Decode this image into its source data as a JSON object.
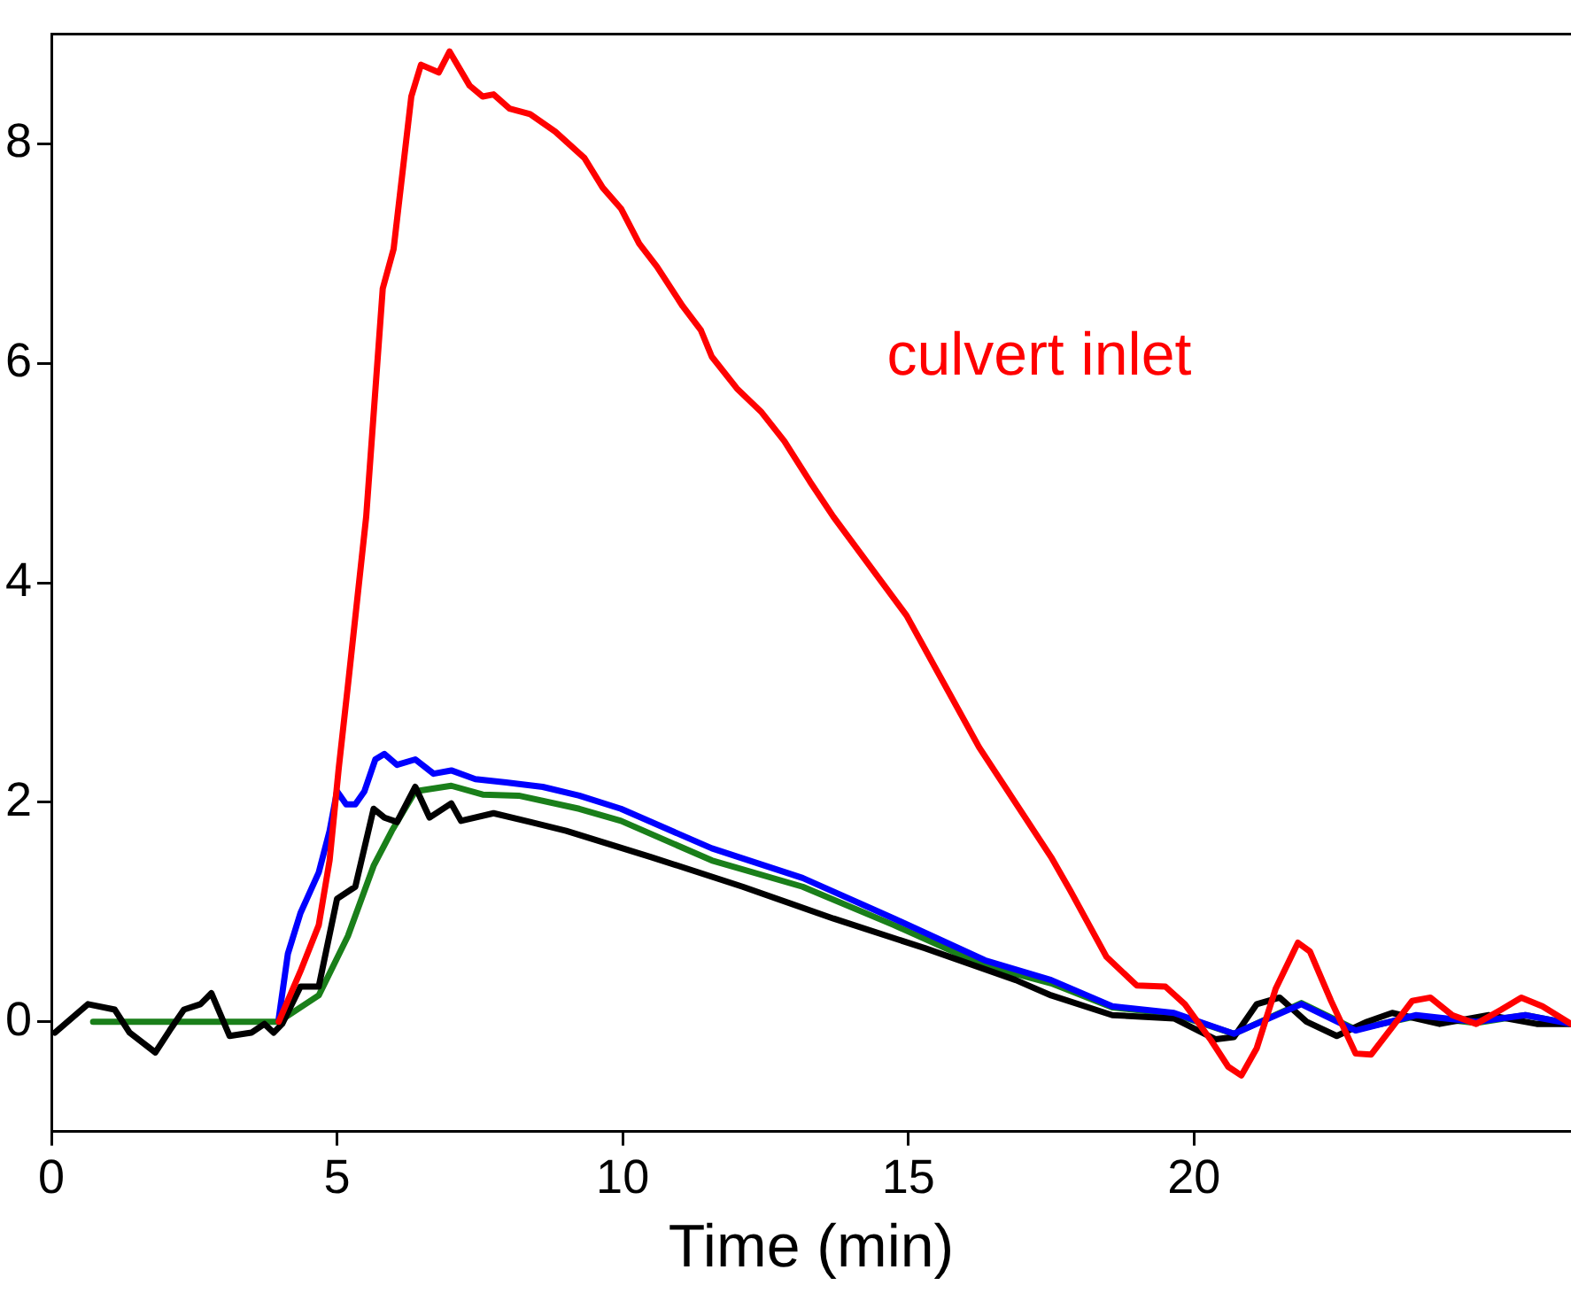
{
  "chart_data": {
    "type": "line",
    "xlabel": "Time (min)",
    "xlim": [
      0,
      26.6
    ],
    "xticks": [
      0,
      5,
      10,
      15,
      20
    ],
    "ylim": [
      -1,
      9
    ],
    "yticks": [
      0,
      2,
      4,
      6,
      8
    ],
    "grid": false,
    "legend": false,
    "marker": "none",
    "line_style": "solid",
    "series": [
      {
        "name": "culvert inlet",
        "color": "#ff0000",
        "x": [
          3.98,
          4.36,
          4.68,
          4.87,
          5.03,
          5.19,
          5.51,
          5.8,
          5.99,
          6.3,
          6.47,
          6.78,
          6.97,
          7.32,
          7.55,
          7.74,
          8.02,
          8.38,
          8.82,
          9.33,
          9.65,
          9.97,
          10.29,
          10.6,
          11.05,
          11.37,
          11.56,
          12.0,
          12.42,
          12.83,
          13.28,
          13.69,
          14.97,
          16.24,
          17.5,
          17.83,
          18.47,
          19.0,
          19.5,
          19.84,
          20.3,
          20.6,
          20.83,
          21.1,
          21.43,
          21.82,
          22.03,
          22.4,
          22.83,
          23.1,
          23.47,
          23.82,
          24.14,
          24.52,
          24.94,
          25.38,
          25.73,
          26.1,
          26.6
        ],
        "values": [
          0,
          0.46,
          0.88,
          1.47,
          2.31,
          3.06,
          4.6,
          6.68,
          7.04,
          8.43,
          8.72,
          8.65,
          8.84,
          8.53,
          8.43,
          8.45,
          8.32,
          8.27,
          8.11,
          7.87,
          7.6,
          7.41,
          7.09,
          6.88,
          6.52,
          6.3,
          6.06,
          5.77,
          5.56,
          5.29,
          4.92,
          4.6,
          3.7,
          2.5,
          1.5,
          1.2,
          0.59,
          0.33,
          0.32,
          0.16,
          -0.17,
          -0.41,
          -0.49,
          -0.24,
          0.3,
          0.72,
          0.64,
          0.19,
          -0.29,
          -0.3,
          -0.05,
          0.19,
          0.22,
          0.06,
          -0.02,
          0.11,
          0.22,
          0.14,
          -0.02
        ]
      },
      {
        "color": "#0000ff",
        "x": [
          3.98,
          4.14,
          4.36,
          4.68,
          4.87,
          5.0,
          5.16,
          5.32,
          5.48,
          5.67,
          5.83,
          6.05,
          6.37,
          6.69,
          7.0,
          7.42,
          7.96,
          8.6,
          9.24,
          9.97,
          11.56,
          13.15,
          14.75,
          16.34,
          17.5,
          18.57,
          19.65,
          20.7,
          21.88,
          22.83,
          23.89,
          24.94,
          25.8,
          26.6
        ],
        "values": [
          0.03,
          0.62,
          0.99,
          1.36,
          1.74,
          2.1,
          1.98,
          1.98,
          2.1,
          2.39,
          2.44,
          2.34,
          2.39,
          2.26,
          2.29,
          2.21,
          2.18,
          2.14,
          2.06,
          1.94,
          1.58,
          1.31,
          0.94,
          0.56,
          0.38,
          0.14,
          0.08,
          -0.11,
          0.16,
          -0.08,
          0.06,
          0,
          0.06,
          -0.02
        ]
      },
      {
        "color": "#000000",
        "x": [
          0.06,
          0.64,
          1.11,
          1.37,
          1.82,
          2.07,
          2.32,
          2.61,
          2.8,
          3.12,
          3.5,
          3.73,
          3.89,
          4.04,
          4.36,
          4.68,
          5.0,
          5.32,
          5.64,
          5.83,
          6.05,
          6.37,
          6.62,
          7.0,
          7.17,
          7.74,
          8.38,
          9.01,
          10.5,
          12.1,
          13.69,
          15.29,
          16.88,
          17.5,
          18.57,
          19.65,
          20.38,
          20.7,
          21.1,
          21.5,
          21.97,
          22.5,
          23.03,
          23.47,
          24.3,
          25.16,
          26.0,
          26.6
        ],
        "values": [
          -0.1,
          0.16,
          0.11,
          -0.1,
          -0.28,
          -0.08,
          0.11,
          0.16,
          0.26,
          -0.13,
          -0.1,
          -0.02,
          -0.1,
          -0.02,
          0.32,
          0.32,
          1.12,
          1.23,
          1.94,
          1.86,
          1.82,
          2.14,
          1.86,
          1.99,
          1.83,
          1.9,
          1.82,
          1.74,
          1.5,
          1.23,
          0.94,
          0.67,
          0.38,
          0.24,
          0.06,
          0.03,
          -0.16,
          -0.14,
          0.16,
          0.22,
          0,
          -0.13,
          0,
          0.08,
          -0.02,
          0.06,
          -0.02,
          -0.02
        ]
      },
      {
        "color": "#1a7f1a",
        "x": [
          0.73,
          3.98,
          4.68,
          5.19,
          5.64,
          5.96,
          6.37,
          7.0,
          7.55,
          8.18,
          9.24,
          9.97,
          11.56,
          13.15,
          14.75,
          16.34,
          17.5,
          18.57,
          19.65,
          20.7,
          21.88,
          22.83,
          23.89,
          24.94,
          25.8,
          26.6
        ],
        "values": [
          0,
          0,
          0.24,
          0.78,
          1.42,
          1.74,
          2.1,
          2.15,
          2.07,
          2.06,
          1.94,
          1.83,
          1.47,
          1.23,
          0.88,
          0.51,
          0.35,
          0.13,
          0.07,
          -0.11,
          0.17,
          -0.07,
          0.05,
          -0.01,
          0.06,
          -0.02
        ]
      }
    ]
  }
}
